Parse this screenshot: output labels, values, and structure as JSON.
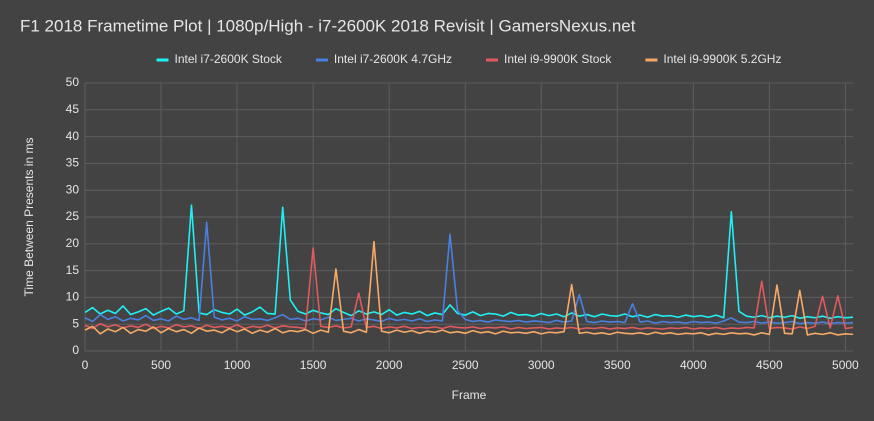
{
  "chart_data": {
    "type": "line",
    "title": "F1 2018 Frametime Plot | 1080p/High - i7-2600K 2018 Revisit | GamersNexus.net",
    "x_label": "Frame",
    "y_label": "Time Between Presents in ms",
    "xlim": [
      0,
      5050
    ],
    "xticks": [
      0,
      500,
      1000,
      1500,
      2000,
      2500,
      3000,
      3500,
      4000,
      4500,
      5000
    ],
    "ylim": [
      0,
      50
    ],
    "yticks": [
      0,
      5,
      10,
      15,
      20,
      25,
      30,
      35,
      40,
      45,
      50
    ],
    "grid": true,
    "legend": "top",
    "x": [
      0,
      50,
      100,
      150,
      200,
      250,
      300,
      350,
      400,
      450,
      500,
      550,
      600,
      650,
      700,
      750,
      800,
      850,
      900,
      950,
      1000,
      1050,
      1100,
      1150,
      1200,
      1250,
      1300,
      1350,
      1400,
      1450,
      1500,
      1550,
      1600,
      1650,
      1700,
      1750,
      1800,
      1850,
      1900,
      1950,
      2000,
      2050,
      2100,
      2150,
      2200,
      2250,
      2300,
      2350,
      2400,
      2450,
      2500,
      2550,
      2600,
      2650,
      2700,
      2750,
      2800,
      2850,
      2900,
      2950,
      3000,
      3050,
      3100,
      3150,
      3200,
      3250,
      3300,
      3350,
      3400,
      3450,
      3500,
      3550,
      3600,
      3650,
      3700,
      3750,
      3800,
      3850,
      3900,
      3950,
      4000,
      4050,
      4100,
      4150,
      4200,
      4250,
      4300,
      4350,
      4400,
      4450,
      4500,
      4550,
      4600,
      4650,
      4700,
      4750,
      4800,
      4850,
      4900,
      4950,
      5000,
      5050
    ],
    "series": [
      {
        "name": "Intel i7-2600K Stock",
        "color": "#1ef0f5",
        "values": [
          7.2,
          8.1,
          6.9,
          7.6,
          7.0,
          8.4,
          6.8,
          7.3,
          7.9,
          6.7,
          7.4,
          8.0,
          6.9,
          7.5,
          27.2,
          7.1,
          6.8,
          7.7,
          7.2,
          6.9,
          7.8,
          6.7,
          7.3,
          8.2,
          7.0,
          6.9,
          26.8,
          9.5,
          7.4,
          6.9,
          7.6,
          7.1,
          6.8,
          7.9,
          7.2,
          6.6,
          7.5,
          6.9,
          7.3,
          6.8,
          7.7,
          6.7,
          7.2,
          6.9,
          7.4,
          6.6,
          7.1,
          6.8,
          8.6,
          7.0,
          6.7,
          7.3,
          6.6,
          7.0,
          6.9,
          6.5,
          7.2,
          6.7,
          6.8,
          6.5,
          7.0,
          6.6,
          6.9,
          6.4,
          7.1,
          6.5,
          6.8,
          6.4,
          6.9,
          6.6,
          6.5,
          6.9,
          6.4,
          6.7,
          6.3,
          6.8,
          6.5,
          6.6,
          6.3,
          6.7,
          6.4,
          6.6,
          6.3,
          6.7,
          6.2,
          26.0,
          7.4,
          6.5,
          6.3,
          6.6,
          6.2,
          6.5,
          6.3,
          6.6,
          6.1,
          6.4,
          6.2,
          6.5,
          6.1,
          6.4,
          6.2,
          6.3
        ]
      },
      {
        "name": "Intel i7-2600K 4.7GHz",
        "color": "#4a80e0",
        "values": [
          6.2,
          5.5,
          6.8,
          5.9,
          6.4,
          5.6,
          6.1,
          5.8,
          6.6,
          5.7,
          6.0,
          5.6,
          6.5,
          5.9,
          6.2,
          5.7,
          24.0,
          6.3,
          5.8,
          6.1,
          5.6,
          6.4,
          5.9,
          6.0,
          5.7,
          6.2,
          6.8,
          5.9,
          6.1,
          5.6,
          6.0,
          5.8,
          6.3,
          5.7,
          5.9,
          6.1,
          5.6,
          6.0,
          5.8,
          5.5,
          6.1,
          5.7,
          5.9,
          5.6,
          6.0,
          5.5,
          5.8,
          5.6,
          21.8,
          7.5,
          5.9,
          5.5,
          5.7,
          5.4,
          5.8,
          5.6,
          5.5,
          5.7,
          5.4,
          5.6,
          5.5,
          5.3,
          5.7,
          5.4,
          5.6,
          10.5,
          5.5,
          5.3,
          5.6,
          5.4,
          5.5,
          5.3,
          8.8,
          5.4,
          5.6,
          5.2,
          5.5,
          5.3,
          5.4,
          5.2,
          5.5,
          5.3,
          5.4,
          5.2,
          5.6,
          6.2,
          5.4,
          5.3,
          5.5,
          5.2,
          5.4,
          5.2,
          5.3,
          5.5,
          5.1,
          5.3,
          5.2,
          5.4,
          5.1,
          5.3,
          5.2,
          5.3
        ]
      },
      {
        "name": "Intel i9-9900K Stock",
        "color": "#e05a5e",
        "values": [
          4.8,
          4.2,
          5.1,
          4.5,
          4.9,
          4.3,
          4.7,
          4.4,
          5.0,
          4.2,
          4.6,
          4.3,
          4.9,
          4.5,
          4.7,
          4.2,
          4.8,
          4.4,
          4.6,
          4.3,
          4.9,
          4.2,
          4.6,
          4.4,
          4.8,
          4.3,
          4.7,
          4.5,
          4.4,
          4.2,
          19.2,
          4.6,
          4.4,
          4.7,
          4.3,
          4.5,
          10.8,
          4.4,
          4.6,
          4.2,
          4.5,
          4.3,
          4.6,
          4.2,
          4.4,
          4.3,
          4.5,
          4.2,
          4.6,
          4.4,
          4.3,
          4.5,
          4.2,
          4.4,
          4.3,
          4.5,
          4.1,
          4.4,
          4.2,
          4.3,
          4.4,
          4.1,
          4.3,
          4.2,
          4.4,
          4.1,
          4.3,
          4.2,
          4.4,
          4.1,
          4.3,
          4.2,
          4.4,
          4.1,
          4.3,
          4.2,
          4.1,
          4.3,
          4.2,
          4.4,
          4.1,
          4.3,
          4.2,
          4.4,
          4.1,
          4.3,
          4.2,
          4.4,
          4.3,
          13.0,
          4.2,
          4.4,
          4.3,
          4.1,
          4.5,
          4.2,
          4.6,
          10.2,
          4.3,
          10.3,
          4.2,
          4.4
        ]
      },
      {
        "name": "Intel i9-9900K 5.2GHz",
        "color": "#f6aa66",
        "values": [
          3.9,
          4.6,
          3.2,
          4.1,
          3.6,
          4.4,
          3.3,
          4.0,
          3.7,
          4.5,
          3.4,
          4.2,
          3.6,
          4.0,
          3.3,
          4.3,
          3.7,
          3.9,
          3.4,
          4.2,
          3.6,
          4.1,
          3.3,
          3.9,
          3.5,
          4.2,
          3.4,
          3.8,
          3.6,
          4.0,
          3.3,
          3.9,
          3.5,
          15.3,
          3.7,
          3.4,
          4.0,
          3.5,
          20.4,
          3.7,
          3.4,
          3.9,
          3.5,
          3.8,
          3.3,
          3.7,
          3.5,
          3.9,
          3.4,
          3.6,
          3.3,
          3.8,
          3.4,
          3.6,
          3.2,
          3.7,
          3.4,
          3.5,
          3.3,
          3.6,
          3.2,
          3.5,
          3.4,
          3.6,
          12.4,
          3.3,
          3.5,
          3.2,
          3.4,
          3.1,
          3.5,
          3.3,
          3.2,
          3.4,
          3.1,
          3.5,
          3.2,
          3.4,
          3.1,
          3.3,
          3.2,
          3.4,
          3.0,
          3.3,
          3.1,
          3.4,
          3.2,
          3.3,
          3.0,
          3.4,
          3.1,
          12.3,
          3.3,
          3.2,
          11.3,
          3.0,
          3.3,
          3.1,
          3.4,
          3.0,
          3.2,
          3.1
        ]
      }
    ]
  }
}
